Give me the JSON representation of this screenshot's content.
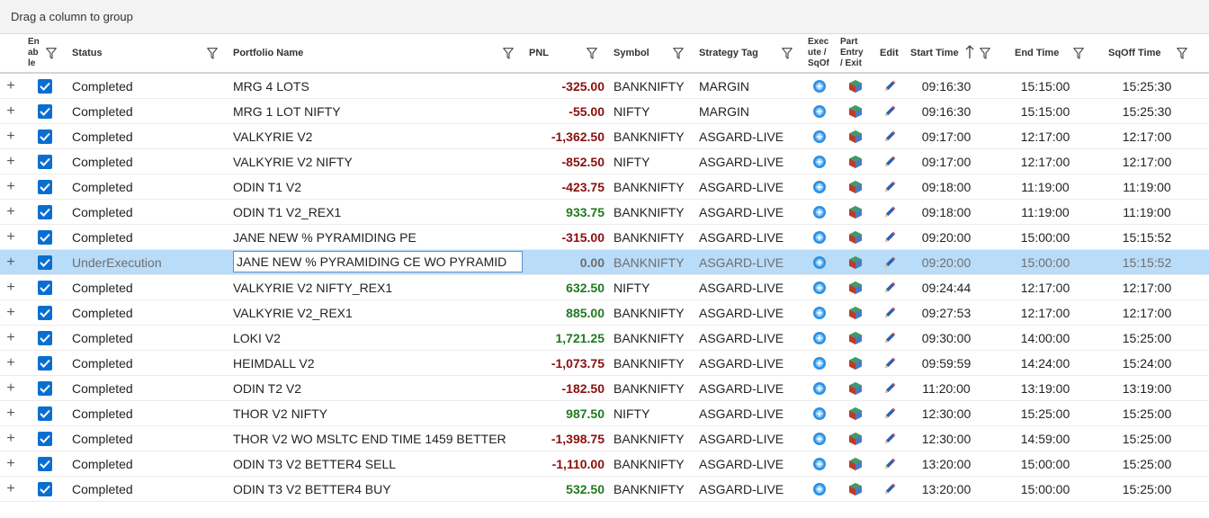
{
  "group_panel": {
    "text": "Drag a column to group"
  },
  "columns": {
    "enable": "En\nab\nle",
    "status": "Status",
    "portfolio": "Portfolio Name",
    "pnl": "PNL",
    "symbol": "Symbol",
    "strategy": "Strategy Tag",
    "execute": "Exec\nute /\nSqOf",
    "part": "Part\nEntry\n/ Exit",
    "edit": "Edit",
    "start": "Start Time",
    "end": "End Time",
    "sqoff": "SqOff Time"
  },
  "sort": {
    "column": "start",
    "direction": "asc"
  },
  "colors": {
    "positive": "#1f7a1f",
    "negative": "#8b0e0e",
    "selected_row": "#b9dcf8",
    "checkbox": "#0a6ed1"
  },
  "icons": {
    "expander": "plus-icon",
    "enable": "checkbox-checked-icon",
    "execute": "execute-sqoff-icon",
    "part": "part-entry-exit-icon",
    "edit": "pencil-icon",
    "filter": "filter-icon",
    "sort": "sort-ascending-icon"
  },
  "rows": [
    {
      "status": "Completed",
      "portfolio": "MRG 4 LOTS",
      "pnl": "-325.00",
      "symbol": "BANKNIFTY",
      "strategy": "MARGIN",
      "start": "09:16:30",
      "end": "15:15:00",
      "sqoff": "15:25:30"
    },
    {
      "status": "Completed",
      "portfolio": "MRG 1 LOT NIFTY",
      "pnl": "-55.00",
      "symbol": "NIFTY",
      "strategy": "MARGIN",
      "start": "09:16:30",
      "end": "15:15:00",
      "sqoff": "15:25:30"
    },
    {
      "status": "Completed",
      "portfolio": "VALKYRIE V2",
      "pnl": "-1,362.50",
      "symbol": "BANKNIFTY",
      "strategy": "ASGARD-LIVE",
      "start": "09:17:00",
      "end": "12:17:00",
      "sqoff": "12:17:00"
    },
    {
      "status": "Completed",
      "portfolio": "VALKYRIE V2 NIFTY",
      "pnl": "-852.50",
      "symbol": "NIFTY",
      "strategy": "ASGARD-LIVE",
      "start": "09:17:00",
      "end": "12:17:00",
      "sqoff": "12:17:00"
    },
    {
      "status": "Completed",
      "portfolio": "ODIN T1 V2",
      "pnl": "-423.75",
      "symbol": "BANKNIFTY",
      "strategy": "ASGARD-LIVE",
      "start": "09:18:00",
      "end": "11:19:00",
      "sqoff": "11:19:00"
    },
    {
      "status": "Completed",
      "portfolio": "ODIN T1 V2_REX1",
      "pnl": "933.75",
      "symbol": "BANKNIFTY",
      "strategy": "ASGARD-LIVE",
      "start": "09:18:00",
      "end": "11:19:00",
      "sqoff": "11:19:00"
    },
    {
      "status": "Completed",
      "portfolio": "JANE NEW % PYRAMIDING PE",
      "pnl": "-315.00",
      "symbol": "BANKNIFTY",
      "strategy": "ASGARD-LIVE",
      "start": "09:20:00",
      "end": "15:00:00",
      "sqoff": "15:15:52"
    },
    {
      "status": "UnderExecution",
      "portfolio": "JANE NEW % PYRAMIDING CE WO PYRAMID",
      "pnl": "0.00",
      "symbol": "BANKNIFTY",
      "strategy": "ASGARD-LIVE",
      "start": "09:20:00",
      "end": "15:00:00",
      "sqoff": "15:15:52",
      "selected": true
    },
    {
      "status": "Completed",
      "portfolio": "VALKYRIE V2 NIFTY_REX1",
      "pnl": "632.50",
      "symbol": "NIFTY",
      "strategy": "ASGARD-LIVE",
      "start": "09:24:44",
      "end": "12:17:00",
      "sqoff": "12:17:00"
    },
    {
      "status": "Completed",
      "portfolio": "VALKYRIE V2_REX1",
      "pnl": "885.00",
      "symbol": "BANKNIFTY",
      "strategy": "ASGARD-LIVE",
      "start": "09:27:53",
      "end": "12:17:00",
      "sqoff": "12:17:00"
    },
    {
      "status": "Completed",
      "portfolio": "LOKI V2",
      "pnl": "1,721.25",
      "symbol": "BANKNIFTY",
      "strategy": "ASGARD-LIVE",
      "start": "09:30:00",
      "end": "14:00:00",
      "sqoff": "15:25:00"
    },
    {
      "status": "Completed",
      "portfolio": "HEIMDALL V2",
      "pnl": "-1,073.75",
      "symbol": "BANKNIFTY",
      "strategy": "ASGARD-LIVE",
      "start": "09:59:59",
      "end": "14:24:00",
      "sqoff": "15:24:00"
    },
    {
      "status": "Completed",
      "portfolio": "ODIN T2 V2",
      "pnl": "-182.50",
      "symbol": "BANKNIFTY",
      "strategy": "ASGARD-LIVE",
      "start": "11:20:00",
      "end": "13:19:00",
      "sqoff": "13:19:00"
    },
    {
      "status": "Completed",
      "portfolio": "THOR V2 NIFTY",
      "pnl": "987.50",
      "symbol": "NIFTY",
      "strategy": "ASGARD-LIVE",
      "start": "12:30:00",
      "end": "15:25:00",
      "sqoff": "15:25:00"
    },
    {
      "status": "Completed",
      "portfolio": "THOR V2 WO MSLTC END TIME 1459 BETTER",
      "pnl": "-1,398.75",
      "symbol": "BANKNIFTY",
      "strategy": "ASGARD-LIVE",
      "start": "12:30:00",
      "end": "14:59:00",
      "sqoff": "15:25:00"
    },
    {
      "status": "Completed",
      "portfolio": "ODIN T3 V2 BETTER4 SELL",
      "pnl": "-1,110.00",
      "symbol": "BANKNIFTY",
      "strategy": "ASGARD-LIVE",
      "start": "13:20:00",
      "end": "15:00:00",
      "sqoff": "15:25:00"
    },
    {
      "status": "Completed",
      "portfolio": "ODIN T3 V2 BETTER4 BUY",
      "pnl": "532.50",
      "symbol": "BANKNIFTY",
      "strategy": "ASGARD-LIVE",
      "start": "13:20:00",
      "end": "15:00:00",
      "sqoff": "15:25:00"
    }
  ]
}
